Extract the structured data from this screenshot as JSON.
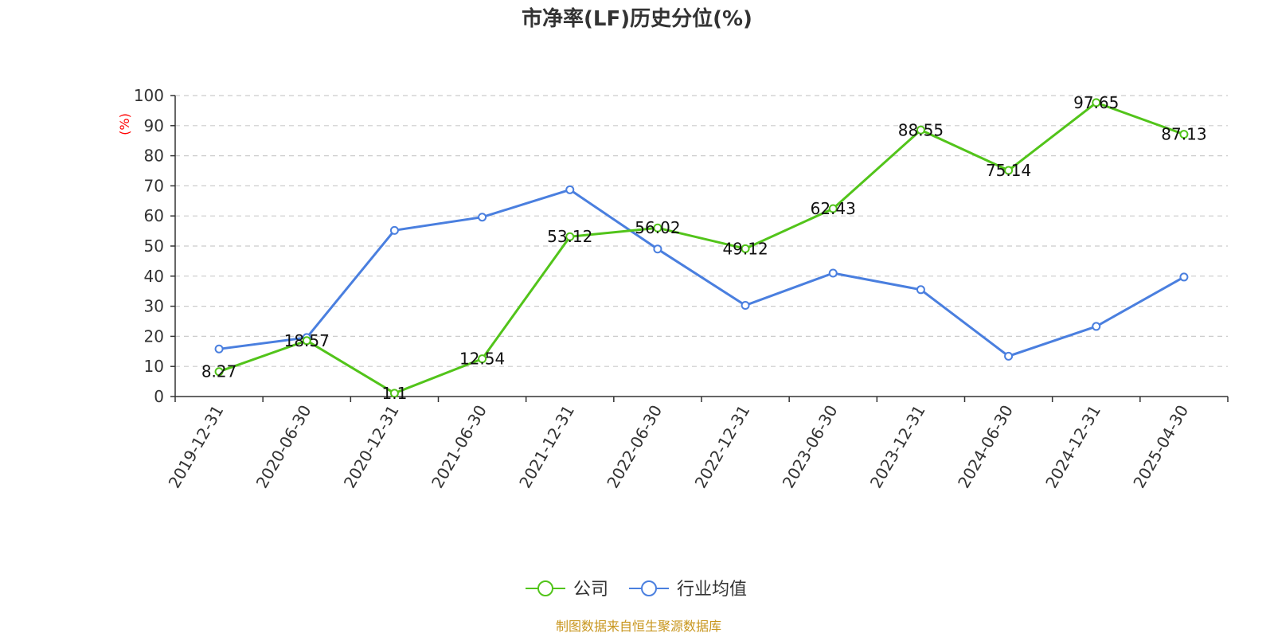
{
  "chart_data": {
    "type": "line",
    "title": "市净率(LF)历史分位(%)",
    "ylabel": "(%)",
    "xlabel": "",
    "ylim": [
      0,
      100
    ],
    "y_ticks": [
      0,
      10,
      20,
      30,
      40,
      50,
      60,
      70,
      80,
      90,
      100
    ],
    "grid": "horizontal-dashed",
    "legend_position": "bottom-center",
    "categories": [
      "2019-12-31",
      "2020-06-30",
      "2020-12-31",
      "2021-06-30",
      "2021-12-31",
      "2022-06-30",
      "2022-12-31",
      "2023-06-30",
      "2023-12-31",
      "2024-06-30",
      "2024-12-31",
      "2025-04-30"
    ],
    "series": [
      {
        "name": "公司",
        "color": "#52c41a",
        "values": [
          8.27,
          18.57,
          1.1,
          12.54,
          53.12,
          56.02,
          49.12,
          62.43,
          88.55,
          75.14,
          97.65,
          87.13
        ],
        "data_labels": [
          "8.27",
          "18.57",
          "1.1",
          "12.54",
          "53.12",
          "56.02",
          "49.12",
          "62.43",
          "88.55",
          "75.14",
          "97.65",
          "87.13"
        ]
      },
      {
        "name": "行业均值",
        "color": "#4a7fdf",
        "values": [
          15.8,
          19.6,
          55.2,
          59.6,
          68.7,
          49.0,
          30.3,
          41.0,
          35.5,
          13.4,
          23.3,
          39.7
        ]
      }
    ],
    "source": "制图数据来自恒生聚源数据库",
    "colors": {
      "axis": "#333333",
      "grid": "#cccccc",
      "ylabel": "#ff0000",
      "source": "#c8961e"
    }
  }
}
